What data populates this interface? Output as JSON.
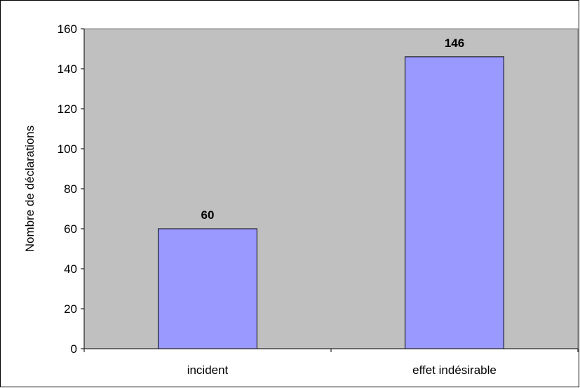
{
  "chart_data": {
    "type": "bar",
    "categories": [
      "incident",
      "effet indésirable"
    ],
    "values": [
      60,
      146
    ],
    "data_labels": [
      "60",
      "146"
    ],
    "title": "",
    "xlabel": "",
    "ylabel": "Nombre de déclarations",
    "ylim": [
      0,
      160
    ],
    "yticks": [
      0,
      20,
      40,
      60,
      80,
      100,
      120,
      140,
      160
    ],
    "ytick_labels": [
      "0",
      "20",
      "40",
      "60",
      "80",
      "100",
      "120",
      "140",
      "160"
    ],
    "grid": false,
    "legend": "none",
    "colors": {
      "bar_fill": "#9999ff",
      "bar_stroke": "#000000",
      "plot_background": "#c0c0c0",
      "chart_background": "#ffffff"
    }
  }
}
